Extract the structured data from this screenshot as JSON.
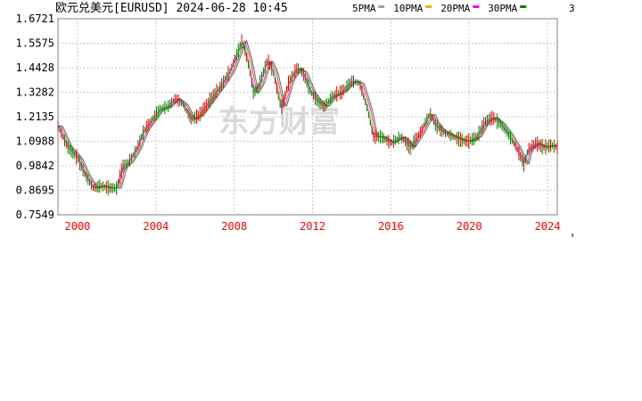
{
  "page": {
    "title": "欧元兑美元[EURUSD] 2024-06-28 10:45",
    "watermark": "东方财富",
    "legend_overflow": "3"
  },
  "chart_data": {
    "type": "line",
    "title": "欧元兑美元[EURUSD] 2024-06-28 10:45",
    "xlabel": "",
    "ylabel": "",
    "y_ticks": [
      "1.6721",
      "1.5575",
      "1.4428",
      "1.3282",
      "1.2135",
      "1.0988",
      "0.9842",
      "0.8695",
      "0.7549"
    ],
    "x_ticks": [
      "2000",
      "2004",
      "2008",
      "2012",
      "2016",
      "2020",
      "2024"
    ],
    "ylim": [
      0.7549,
      1.6721
    ],
    "xlim": [
      1999.0,
      2024.5
    ],
    "grid": true,
    "legend_placement": "top-right",
    "series": [
      {
        "name": "5PMA",
        "color": "#a0a0a0"
      },
      {
        "name": "10PMA",
        "color": "#f0b000"
      },
      {
        "name": "20PMA",
        "color": "#ff00ff"
      },
      {
        "name": "30PMA",
        "color": "#008000"
      }
    ],
    "x": [
      1999.0,
      1999.5,
      2000.0,
      2000.4,
      2000.8,
      2001.2,
      2001.6,
      2002.0,
      2002.3,
      2002.6,
      2003.0,
      2003.4,
      2003.8,
      2004.2,
      2004.6,
      2005.0,
      2005.4,
      2005.8,
      2006.2,
      2006.6,
      2007.0,
      2007.4,
      2007.8,
      2008.2,
      2008.4,
      2008.7,
      2009.0,
      2009.3,
      2009.7,
      2010.0,
      2010.4,
      2010.8,
      2011.2,
      2011.5,
      2011.9,
      2012.3,
      2012.6,
      2013.0,
      2013.5,
      2014.0,
      2014.4,
      2014.8,
      2015.1,
      2015.5,
      2016.0,
      2016.5,
      2017.0,
      2017.5,
      2018.0,
      2018.3,
      2018.7,
      2019.2,
      2019.7,
      2020.0,
      2020.4,
      2020.8,
      2021.2,
      2021.6,
      2022.0,
      2022.4,
      2022.8,
      2023.0,
      2023.4,
      2023.8,
      2024.2,
      2024.5
    ],
    "values": [
      1.17,
      1.07,
      1.02,
      0.94,
      0.88,
      0.89,
      0.88,
      0.88,
      0.98,
      1.0,
      1.06,
      1.15,
      1.2,
      1.25,
      1.26,
      1.3,
      1.27,
      1.2,
      1.22,
      1.27,
      1.32,
      1.37,
      1.43,
      1.52,
      1.57,
      1.47,
      1.32,
      1.37,
      1.48,
      1.42,
      1.25,
      1.38,
      1.44,
      1.42,
      1.33,
      1.28,
      1.26,
      1.31,
      1.33,
      1.38,
      1.37,
      1.25,
      1.12,
      1.12,
      1.09,
      1.12,
      1.07,
      1.14,
      1.23,
      1.17,
      1.14,
      1.12,
      1.1,
      1.1,
      1.12,
      1.19,
      1.21,
      1.18,
      1.13,
      1.07,
      0.99,
      1.06,
      1.09,
      1.07,
      1.08,
      1.07
    ]
  }
}
